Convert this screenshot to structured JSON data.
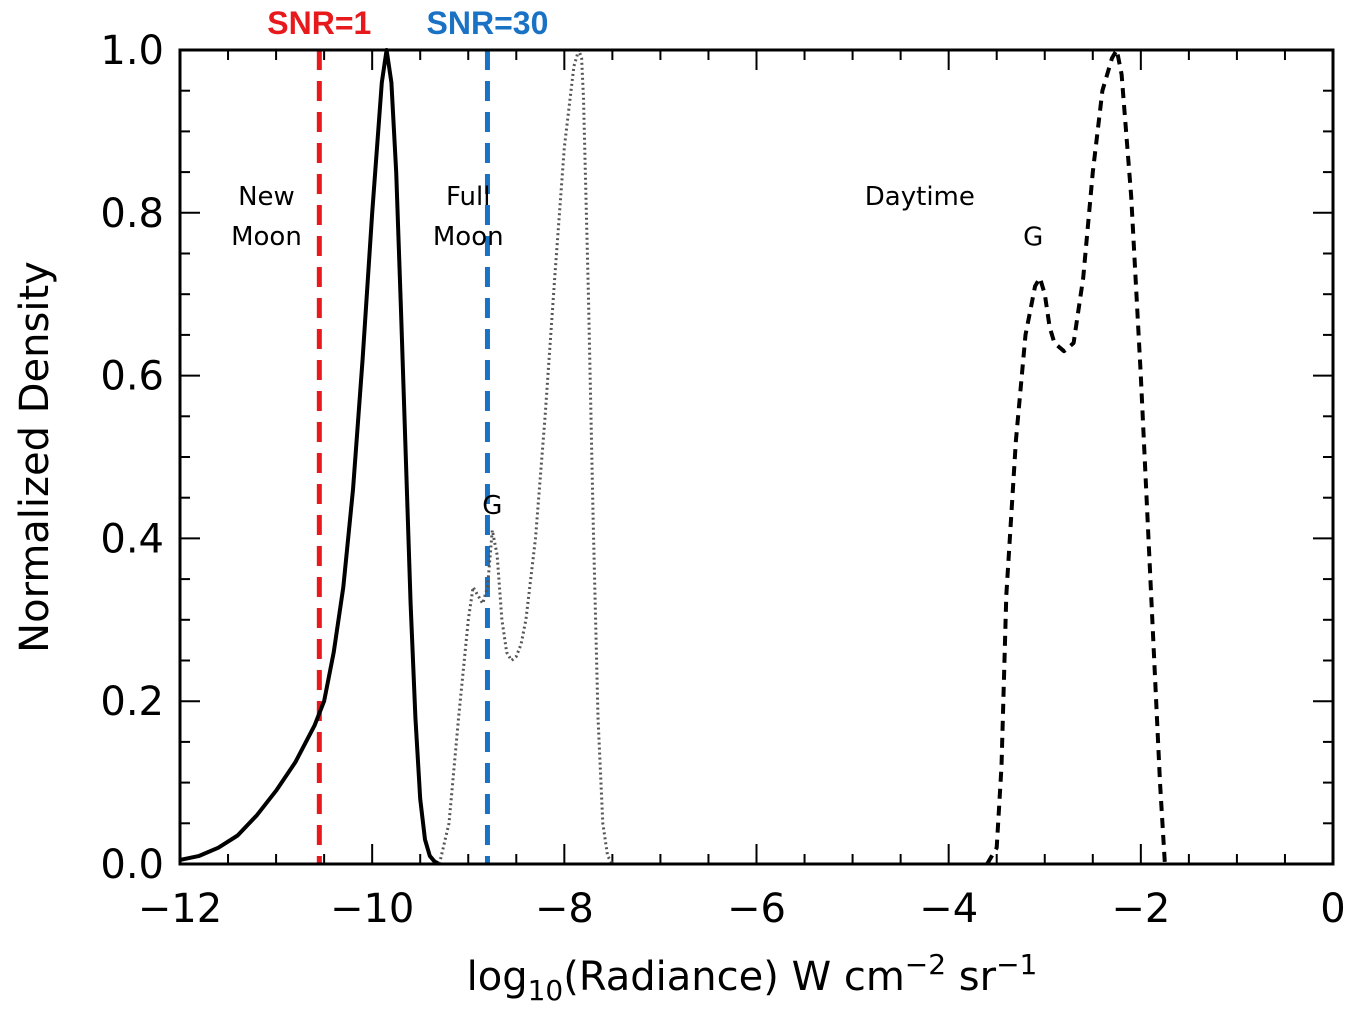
{
  "chart_data": {
    "type": "line",
    "title": "",
    "xlabel": {
      "pre": "log",
      "sub": "10",
      "mid": "(Radiance) W cm",
      "sup1": "−2",
      "sep": " sr",
      "sup2": "−1"
    },
    "ylabel": "Normalized Density",
    "xlim": [
      -12,
      0
    ],
    "ylim": [
      0,
      1
    ],
    "x_ticks": [
      -12,
      -10,
      -8,
      -6,
      -4,
      -2,
      0
    ],
    "x_tick_labels": [
      "−12",
      "−10",
      "−8",
      "−6",
      "−4",
      "−2",
      "0"
    ],
    "y_ticks": [
      0,
      0.2,
      0.4,
      0.6,
      0.8,
      1.0
    ],
    "y_tick_labels": [
      "0.0",
      "0.2",
      "0.4",
      "0.6",
      "0.8",
      "1.0"
    ],
    "series": [
      {
        "style": "solid",
        "color": "#000000",
        "x": [
          -12.0,
          -11.8,
          -11.6,
          -11.4,
          -11.2,
          -11.0,
          -10.8,
          -10.6,
          -10.5,
          -10.4,
          -10.3,
          -10.2,
          -10.1,
          -10.0,
          -9.9,
          -9.85,
          -9.8,
          -9.75,
          -9.7,
          -9.65,
          -9.6,
          -9.55,
          -9.5,
          -9.45,
          -9.4,
          -9.35,
          -9.3
        ],
        "y": [
          0.005,
          0.01,
          0.02,
          0.035,
          0.06,
          0.09,
          0.125,
          0.17,
          0.2,
          0.26,
          0.34,
          0.46,
          0.62,
          0.8,
          0.96,
          1.0,
          0.96,
          0.85,
          0.68,
          0.5,
          0.32,
          0.18,
          0.08,
          0.03,
          0.01,
          0.003,
          0.0
        ]
      },
      {
        "style": "dotted",
        "color": "#555555",
        "x": [
          -9.3,
          -9.2,
          -9.1,
          -9.0,
          -8.95,
          -8.9,
          -8.85,
          -8.8,
          -8.75,
          -8.7,
          -8.65,
          -8.6,
          -8.55,
          -8.5,
          -8.45,
          -8.4,
          -8.3,
          -8.2,
          -8.1,
          -8.0,
          -7.9,
          -7.85,
          -7.82,
          -7.8,
          -7.75,
          -7.7,
          -7.65,
          -7.6,
          -7.55,
          -7.5
        ],
        "y": [
          0.0,
          0.05,
          0.18,
          0.3,
          0.34,
          0.33,
          0.32,
          0.34,
          0.41,
          0.38,
          0.3,
          0.26,
          0.25,
          0.255,
          0.27,
          0.3,
          0.4,
          0.55,
          0.72,
          0.88,
          0.98,
          1.0,
          0.99,
          0.94,
          0.7,
          0.42,
          0.18,
          0.05,
          0.01,
          0.0
        ]
      },
      {
        "style": "dashed",
        "color": "#000000",
        "x": [
          -3.6,
          -3.5,
          -3.45,
          -3.4,
          -3.3,
          -3.2,
          -3.1,
          -3.05,
          -3.0,
          -2.95,
          -2.9,
          -2.8,
          -2.7,
          -2.6,
          -2.5,
          -2.4,
          -2.3,
          -2.25,
          -2.2,
          -2.1,
          -2.0,
          -1.9,
          -1.8,
          -1.75
        ],
        "y": [
          0.0,
          0.02,
          0.12,
          0.33,
          0.52,
          0.65,
          0.71,
          0.72,
          0.7,
          0.66,
          0.64,
          0.63,
          0.64,
          0.72,
          0.85,
          0.95,
          0.99,
          1.0,
          0.97,
          0.82,
          0.6,
          0.35,
          0.1,
          0.0
        ]
      }
    ],
    "vertical_lines": [
      {
        "x": -10.55,
        "label": "SNR=1",
        "color": "#e8191d"
      },
      {
        "x": -8.8,
        "label": "SNR=30",
        "color": "#1a72c4"
      }
    ],
    "annotations": [
      {
        "lines": [
          "New",
          "Moon"
        ],
        "x": -11.1,
        "y": 0.8
      },
      {
        "lines": [
          "Full",
          "Moon"
        ],
        "x": -9.0,
        "y": 0.8
      },
      {
        "lines": [
          "Daytime"
        ],
        "x": -4.3,
        "y": 0.8
      },
      {
        "lines": [
          "G"
        ],
        "x": -3.12,
        "y": 0.75
      },
      {
        "lines": [
          "G"
        ],
        "x": -8.75,
        "y": 0.42
      }
    ]
  }
}
